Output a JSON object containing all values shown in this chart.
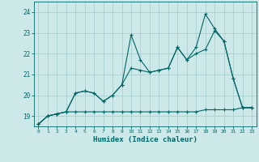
{
  "xlabel": "Humidex (Indice chaleur)",
  "bg_color": "#cce8e8",
  "line_color": "#006666",
  "grid_color": "#aacfcf",
  "ylim": [
    18.5,
    24.5
  ],
  "xlim": [
    -0.5,
    23.5
  ],
  "yticks": [
    19,
    20,
    21,
    22,
    23,
    24
  ],
  "xticks": [
    0,
    1,
    2,
    3,
    4,
    5,
    6,
    7,
    8,
    9,
    10,
    11,
    12,
    13,
    14,
    15,
    16,
    17,
    18,
    19,
    20,
    21,
    22,
    23
  ],
  "series1_x": [
    0,
    1,
    2,
    3,
    4,
    5,
    6,
    7,
    8,
    9,
    10,
    11,
    12,
    13,
    14,
    15,
    16,
    17,
    18,
    19,
    20,
    21,
    22,
    23
  ],
  "series1_y": [
    18.6,
    19.0,
    19.1,
    19.2,
    20.1,
    20.2,
    20.1,
    19.7,
    20.0,
    20.5,
    21.3,
    21.2,
    21.1,
    21.2,
    21.3,
    22.3,
    21.7,
    22.0,
    22.2,
    23.1,
    22.6,
    20.8,
    19.4,
    19.4
  ],
  "series2_x": [
    0,
    1,
    2,
    3,
    4,
    5,
    6,
    7,
    8,
    9,
    10,
    11,
    12,
    13,
    14,
    15,
    16,
    17,
    18,
    19,
    20,
    21,
    22,
    23
  ],
  "series2_y": [
    18.6,
    19.0,
    19.1,
    19.2,
    20.1,
    20.2,
    20.1,
    19.7,
    20.0,
    20.5,
    22.9,
    21.7,
    21.1,
    21.2,
    21.3,
    22.3,
    21.7,
    22.3,
    23.9,
    23.2,
    22.6,
    20.8,
    19.4,
    19.4
  ],
  "series3_x": [
    0,
    1,
    2,
    3,
    4,
    5,
    6,
    7,
    8,
    9,
    10,
    11,
    12,
    13,
    14,
    15,
    16,
    17,
    18,
    19,
    20,
    21,
    22,
    23
  ],
  "series3_y": [
    18.6,
    19.0,
    19.1,
    19.2,
    19.2,
    19.2,
    19.2,
    19.2,
    19.2,
    19.2,
    19.2,
    19.2,
    19.2,
    19.2,
    19.2,
    19.2,
    19.2,
    19.2,
    19.3,
    19.3,
    19.3,
    19.3,
    19.4,
    19.4
  ]
}
